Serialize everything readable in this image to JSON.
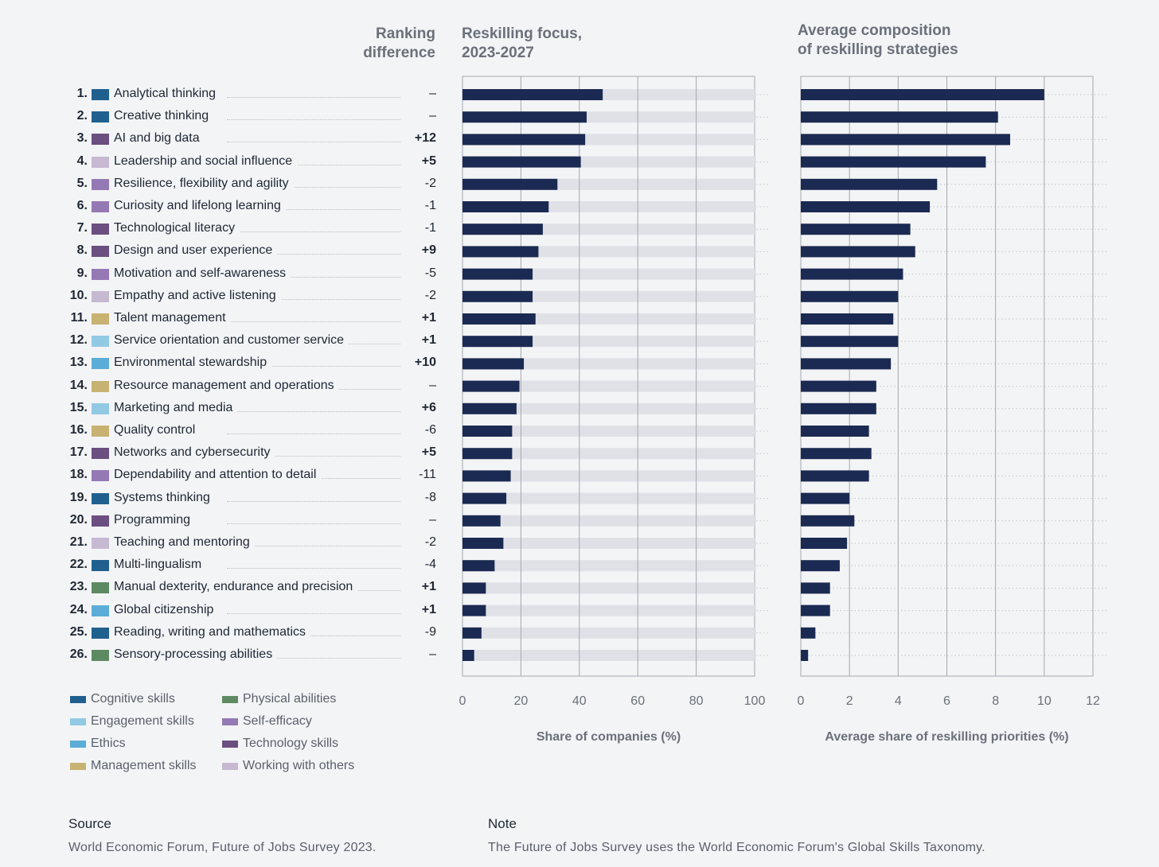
{
  "headers": {
    "ranking": [
      "Ranking",
      "difference"
    ],
    "focus": [
      "Reskilling focus,",
      "2023-2027"
    ],
    "composition": [
      "Average composition",
      "of reskilling strategies"
    ]
  },
  "categories": [
    {
      "key": "cognitive",
      "label": "Cognitive skills",
      "color": "#20608f"
    },
    {
      "key": "engagement",
      "label": "Engagement skills",
      "color": "#92c9e3"
    },
    {
      "key": "ethics",
      "label": "Ethics",
      "color": "#5badd8"
    },
    {
      "key": "management",
      "label": "Management skills",
      "color": "#c7b272"
    },
    {
      "key": "physical",
      "label": "Physical abilities",
      "color": "#5e8a62"
    },
    {
      "key": "selfefficacy",
      "label": "Self-efficacy",
      "color": "#9579b5"
    },
    {
      "key": "technology",
      "label": "Technology skills",
      "color": "#6b4f80"
    },
    {
      "key": "others",
      "label": "Working with others",
      "color": "#c7b9d1"
    }
  ],
  "chart_data": [
    {
      "type": "bar",
      "orientation": "horizontal",
      "title": "Reskilling focus, 2023-2027",
      "xlabel": "Share of companies (%)",
      "xlim": [
        0,
        100
      ],
      "xticks": [
        0,
        20,
        40,
        60,
        80,
        100
      ],
      "grid": true,
      "categories": [
        "Analytical thinking",
        "Creative thinking",
        "AI and big data",
        "Leadership and social influence",
        "Resilience, flexibility and agility",
        "Curiosity and lifelong learning",
        "Technological literacy",
        "Design and user experience",
        "Motivation and self-awareness",
        "Empathy and active listening",
        "Talent management",
        "Service orientation and customer service",
        "Environmental stewardship",
        "Resource management and operations",
        "Marketing and media",
        "Quality control",
        "Networks and cybersecurity",
        "Dependability and attention to detail",
        "Systems thinking",
        "Programming",
        "Teaching and mentoring",
        "Multi-lingualism",
        "Manual dexterity, endurance and precision",
        "Global citizenship",
        "Reading, writing and mathematics",
        "Sensory-processing abilities"
      ],
      "values": [
        48,
        42.5,
        42,
        40.5,
        32.5,
        29.5,
        27.5,
        26,
        24,
        24,
        25,
        24,
        21,
        19.5,
        18.5,
        17,
        17,
        16.5,
        15,
        13,
        14,
        11,
        8,
        8,
        6.5,
        4
      ],
      "background_max": 100
    },
    {
      "type": "bar",
      "orientation": "horizontal",
      "title": "Average composition of reskilling strategies",
      "xlabel": "Average share of reskilling priorities (%)",
      "xlim": [
        0,
        12
      ],
      "xticks": [
        0,
        2,
        4,
        6,
        8,
        10,
        12
      ],
      "grid": true,
      "categories": [
        "Analytical thinking",
        "Creative thinking",
        "AI and big data",
        "Leadership and social influence",
        "Resilience, flexibility and agility",
        "Curiosity and lifelong learning",
        "Technological literacy",
        "Design and user experience",
        "Motivation and self-awareness",
        "Empathy and active listening",
        "Talent management",
        "Service orientation and customer service",
        "Environmental stewardship",
        "Resource management and operations",
        "Marketing and media",
        "Quality control",
        "Networks and cybersecurity",
        "Dependability and attention to detail",
        "Systems thinking",
        "Programming",
        "Teaching and mentoring",
        "Multi-lingualism",
        "Manual dexterity, endurance and precision",
        "Global citizenship",
        "Reading, writing and mathematics",
        "Sensory-processing abilities"
      ],
      "values": [
        10,
        8.1,
        8.6,
        7.6,
        5.6,
        5.3,
        4.5,
        4.7,
        4.2,
        4.0,
        3.8,
        4.0,
        3.7,
        3.1,
        3.1,
        2.8,
        2.9,
        2.8,
        2.0,
        2.2,
        1.9,
        1.6,
        1.2,
        1.2,
        0.6,
        0.3
      ]
    }
  ],
  "skills": [
    {
      "rank": "1.",
      "name": "Analytical thinking",
      "cat": "cognitive",
      "diff": "–",
      "bold": false
    },
    {
      "rank": "2.",
      "name": "Creative thinking",
      "cat": "cognitive",
      "diff": "–",
      "bold": false
    },
    {
      "rank": "3.",
      "name": "AI and big data",
      "cat": "technology",
      "diff": "+12",
      "bold": true
    },
    {
      "rank": "4.",
      "name": "Leadership and social influence",
      "cat": "others",
      "diff": "+5",
      "bold": true
    },
    {
      "rank": "5.",
      "name": "Resilience, flexibility and agility",
      "cat": "selfefficacy",
      "diff": "-2",
      "bold": false
    },
    {
      "rank": "6.",
      "name": "Curiosity and lifelong learning",
      "cat": "selfefficacy",
      "diff": "-1",
      "bold": false
    },
    {
      "rank": "7.",
      "name": "Technological literacy",
      "cat": "technology",
      "diff": "-1",
      "bold": false
    },
    {
      "rank": "8.",
      "name": "Design and user experience",
      "cat": "technology",
      "diff": "+9",
      "bold": true
    },
    {
      "rank": "9.",
      "name": "Motivation and self-awareness",
      "cat": "selfefficacy",
      "diff": "-5",
      "bold": false
    },
    {
      "rank": "10.",
      "name": "Empathy and active listening",
      "cat": "others",
      "diff": "-2",
      "bold": false
    },
    {
      "rank": "11.",
      "name": "Talent management",
      "cat": "management",
      "diff": "+1",
      "bold": true
    },
    {
      "rank": "12.",
      "name": "Service orientation and customer service",
      "cat": "engagement",
      "diff": "+1",
      "bold": true
    },
    {
      "rank": "13.",
      "name": "Environmental stewardship",
      "cat": "ethics",
      "diff": "+10",
      "bold": true
    },
    {
      "rank": "14.",
      "name": "Resource management and operations",
      "cat": "management",
      "diff": "–",
      "bold": false
    },
    {
      "rank": "15.",
      "name": "Marketing and media",
      "cat": "engagement",
      "diff": "+6",
      "bold": true
    },
    {
      "rank": "16.",
      "name": "Quality control",
      "cat": "management",
      "diff": "-6",
      "bold": false
    },
    {
      "rank": "17.",
      "name": "Networks and cybersecurity",
      "cat": "technology",
      "diff": "+5",
      "bold": true
    },
    {
      "rank": "18.",
      "name": "Dependability and attention to detail",
      "cat": "selfefficacy",
      "diff": "-11",
      "bold": false
    },
    {
      "rank": "19.",
      "name": "Systems thinking",
      "cat": "cognitive",
      "diff": "-8",
      "bold": false
    },
    {
      "rank": "20.",
      "name": "Programming",
      "cat": "technology",
      "diff": "–",
      "bold": false
    },
    {
      "rank": "21.",
      "name": "Teaching and mentoring",
      "cat": "others",
      "diff": "-2",
      "bold": false
    },
    {
      "rank": "22.",
      "name": "Multi-lingualism",
      "cat": "cognitive",
      "diff": "-4",
      "bold": false
    },
    {
      "rank": "23.",
      "name": "Manual dexterity, endurance and precision",
      "cat": "physical",
      "diff": "+1",
      "bold": true
    },
    {
      "rank": "24.",
      "name": "Global citizenship",
      "cat": "ethics",
      "diff": "+1",
      "bold": true
    },
    {
      "rank": "25.",
      "name": "Reading, writing and mathematics",
      "cat": "cognitive",
      "diff": "-9",
      "bold": false
    },
    {
      "rank": "26.",
      "name": "Sensory-processing abilities",
      "cat": "physical",
      "diff": "–",
      "bold": false
    }
  ],
  "colors": {
    "bar": "#1b2a52",
    "track": "#dfe1e7",
    "grid": "#a3a7ae"
  },
  "footer": {
    "source_heading": "Source",
    "source_text": "World Economic Forum, Future of Jobs Survey 2023.",
    "note_heading": "Note",
    "note_text": "The Future of Jobs Survey uses the World Economic Forum's Global Skills Taxonomy."
  }
}
